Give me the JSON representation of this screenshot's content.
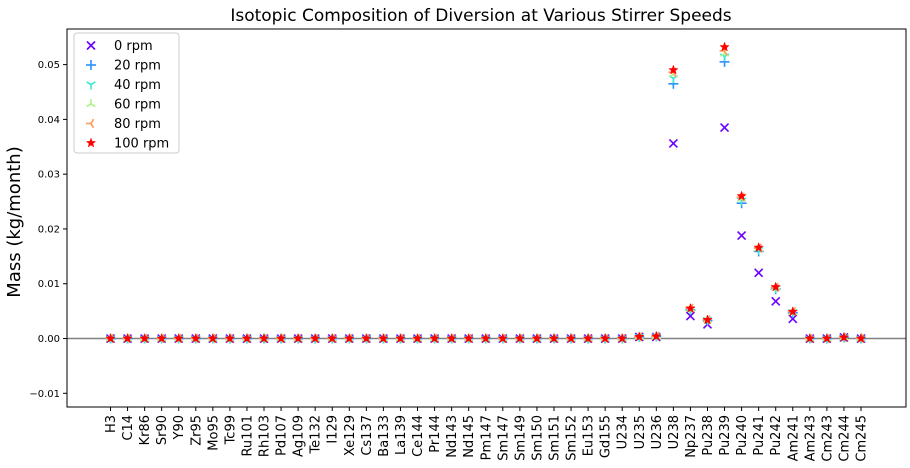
{
  "chart_data": {
    "type": "scatter",
    "title": "Isotopic Composition of Diversion at Various Stirrer Speeds",
    "xlabel": "",
    "ylabel": "Mass (kg/month)",
    "ylim": [
      -0.0125,
      0.0565
    ],
    "yticks": [
      "−0.01",
      "0.00",
      "0.01",
      "0.02",
      "0.03",
      "0.04",
      "0.05"
    ],
    "ytick_values": [
      -0.01,
      0.0,
      0.01,
      0.02,
      0.03,
      0.04,
      0.05
    ],
    "reference_line_y": 0.0,
    "grid": false,
    "legend_position": "top-left",
    "categories": [
      "H3",
      "C14",
      "Kr86",
      "Sr90",
      "Y90",
      "Zr95",
      "Mo95",
      "Tc99",
      "Ru101",
      "Rh103",
      "Pd107",
      "Ag109",
      "Te132",
      "I129",
      "Xe129",
      "Cs137",
      "Ba133",
      "La139",
      "Ce144",
      "Pr144",
      "Nd143",
      "Nd145",
      "Pm147",
      "Sm147",
      "Sm149",
      "Sm150",
      "Sm151",
      "Sm152",
      "Eu153",
      "Gd155",
      "U234",
      "U235",
      "U236",
      "U238",
      "Np237",
      "Pu238",
      "Pu239",
      "Pu240",
      "Pu241",
      "Pu242",
      "Am241",
      "Am243",
      "Cm243",
      "Cm244",
      "Cm245"
    ],
    "series": [
      {
        "name": "0 rpm",
        "marker": "x",
        "color": "#6a00ff",
        "values": [
          0,
          0,
          0,
          0,
          0,
          0,
          0,
          0,
          0,
          0,
          0,
          0,
          0,
          0,
          0,
          0,
          0,
          0,
          0,
          0,
          0,
          0,
          0,
          0,
          0,
          0,
          0,
          0,
          0,
          0,
          0,
          0.0003,
          0.0003,
          0.0356,
          0.0041,
          0.0026,
          0.0385,
          0.0188,
          0.012,
          0.0068,
          0.0036,
          0,
          0,
          0.0002,
          0
        ]
      },
      {
        "name": "20 rpm",
        "marker": "+",
        "color": "#2a8fff",
        "values": [
          0,
          0,
          0,
          0,
          0,
          0,
          0,
          0,
          0,
          0,
          0,
          0,
          0,
          0,
          0,
          0,
          0,
          0,
          0,
          0,
          0,
          0,
          0,
          0,
          0,
          0,
          0,
          0,
          0,
          0,
          0,
          0.0003,
          0.0004,
          0.0465,
          0.0052,
          0.0033,
          0.0505,
          0.0247,
          0.0159,
          0.009,
          0.0047,
          0,
          0,
          0.0002,
          0
        ]
      },
      {
        "name": "40 rpm",
        "marker": "tri-down",
        "color": "#3ce8d2",
        "values": [
          0,
          0,
          0,
          0,
          0,
          0,
          0,
          0,
          0,
          0,
          0,
          0,
          0,
          0,
          0,
          0,
          0,
          0,
          0,
          0,
          0,
          0,
          0,
          0,
          0,
          0,
          0,
          0,
          0,
          0,
          0,
          0.0003,
          0.0004,
          0.0475,
          0.0053,
          0.0034,
          0.0515,
          0.0252,
          0.0162,
          0.0092,
          0.0048,
          0,
          0,
          0.0002,
          0
        ]
      },
      {
        "name": "60 rpm",
        "marker": "tri-up",
        "color": "#b0f290",
        "values": [
          0,
          0,
          0,
          0,
          0,
          0,
          0,
          0,
          0,
          0,
          0,
          0,
          0,
          0,
          0,
          0,
          0,
          0,
          0,
          0,
          0,
          0,
          0,
          0,
          0,
          0,
          0,
          0,
          0,
          0,
          0,
          0.0003,
          0.0004,
          0.0482,
          0.0054,
          0.0034,
          0.052,
          0.0255,
          0.0164,
          0.0093,
          0.0048,
          0,
          0,
          0.0002,
          0
        ]
      },
      {
        "name": "80 rpm",
        "marker": "tri-left",
        "color": "#ff9a5a",
        "values": [
          0,
          0,
          0,
          0,
          0,
          0,
          0,
          0,
          0,
          0,
          0,
          0,
          0,
          0,
          0,
          0,
          0,
          0,
          0,
          0,
          0,
          0,
          0,
          0,
          0,
          0,
          0,
          0,
          0,
          0,
          0,
          0.0003,
          0.0004,
          0.0486,
          0.0055,
          0.0034,
          0.0525,
          0.0258,
          0.0165,
          0.0093,
          0.0049,
          0,
          0,
          0.0002,
          0
        ]
      },
      {
        "name": "100 rpm",
        "marker": "star",
        "color": "#ff0000",
        "values": [
          0,
          0,
          0,
          0,
          0,
          0,
          0,
          0,
          0,
          0,
          0,
          0,
          0,
          0,
          0,
          0,
          0,
          0,
          0,
          0,
          0,
          0,
          0,
          0,
          0,
          0,
          0,
          0,
          0,
          0,
          0,
          0.0003,
          0.0004,
          0.049,
          0.0055,
          0.0034,
          0.0532,
          0.026,
          0.0166,
          0.0094,
          0.0049,
          0,
          0,
          0.0002,
          0
        ]
      }
    ]
  }
}
